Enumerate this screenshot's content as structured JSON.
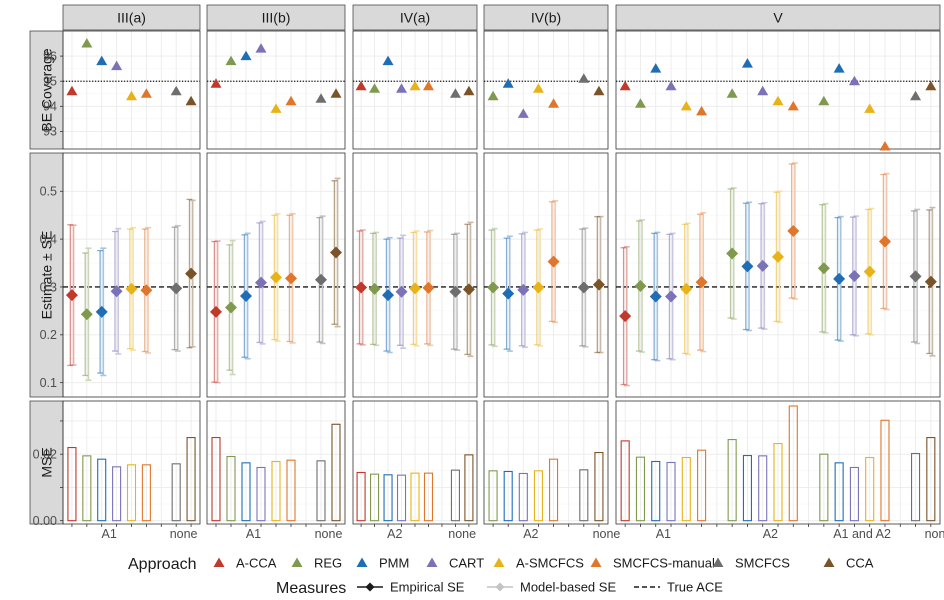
{
  "chart_data": {
    "type": "faceted-dot-errorbar-bar",
    "panels": [
      "III(a)",
      "III(b)",
      "IV(a)",
      "IV(b)",
      "V"
    ],
    "rows": [
      {
        "key": "coverage",
        "label": "BE Coverage",
        "ylim": [
          92.3,
          97.0
        ],
        "ticks": [
          93,
          94,
          95,
          96
        ],
        "tick_labels": [
          "93",
          "94",
          "95",
          "96"
        ],
        "reference_line": 95,
        "reference_style": "dotted"
      },
      {
        "key": "estimate",
        "label": "Estimate ± SE",
        "ylim": [
          0.07,
          0.58
        ],
        "ticks": [
          0.1,
          0.2,
          0.3,
          0.4,
          0.5
        ],
        "tick_labels": [
          "0.1",
          "0.2",
          "0.3",
          "0.4",
          "0.5"
        ],
        "reference_line": 0.3,
        "reference_style": "dashed"
      },
      {
        "key": "mse",
        "label": "MSE",
        "ylim": [
          -0.001,
          0.036
        ],
        "ticks": [
          0.0,
          0.01,
          0.02,
          0.03
        ],
        "tick_labels": [
          "0.00",
          "",
          "0.02",
          ""
        ]
      }
    ],
    "approaches": [
      {
        "name": "A-CCA",
        "color": "#c0392b"
      },
      {
        "name": "REG",
        "color": "#7f9a4f"
      },
      {
        "name": "PMM",
        "color": "#1f6db5"
      },
      {
        "name": "CART",
        "color": "#7b72b8"
      },
      {
        "name": "A-SMCFCS",
        "color": "#e8b319"
      },
      {
        "name": "SMCFCS-manual",
        "color": "#e0762b"
      },
      {
        "name": "SMCFCS",
        "color": "#6e6e6e"
      },
      {
        "name": "CCA",
        "color": "#7a5428"
      }
    ],
    "facets": [
      {
        "name": "III(a)",
        "x_labels": [
          {
            "label": "A1",
            "pos": 3.5
          },
          {
            "label": "none",
            "pos": 8.5
          }
        ],
        "points": [
          {
            "approach": "A-CCA",
            "x": 1,
            "coverage": 94.6,
            "estimate": 0.283,
            "emp_se": 0.147,
            "mod_se": 0.146,
            "mse": 0.022
          },
          {
            "approach": "REG",
            "x": 2,
            "coverage": 96.5,
            "estimate": 0.243,
            "emp_se": 0.128,
            "mod_se": 0.138,
            "mse": 0.0195
          },
          {
            "approach": "PMM",
            "x": 3,
            "coverage": 95.8,
            "estimate": 0.248,
            "emp_se": 0.128,
            "mod_se": 0.133,
            "mse": 0.0185
          },
          {
            "approach": "CART",
            "x": 4,
            "coverage": 95.6,
            "estimate": 0.291,
            "emp_se": 0.125,
            "mod_se": 0.131,
            "mse": 0.0162
          },
          {
            "approach": "A-SMCFCS",
            "x": 5,
            "coverage": 94.4,
            "estimate": 0.296,
            "emp_se": 0.125,
            "mod_se": 0.128,
            "mse": 0.0168
          },
          {
            "approach": "SMCFCS-manual",
            "x": 6,
            "coverage": 94.5,
            "estimate": 0.293,
            "emp_se": 0.128,
            "mod_se": 0.131,
            "mse": 0.0168
          },
          {
            "approach": "SMCFCS",
            "x": 8,
            "coverage": 94.6,
            "estimate": 0.297,
            "emp_se": 0.128,
            "mod_se": 0.131,
            "mse": 0.0171
          },
          {
            "approach": "CCA",
            "x": 9,
            "coverage": 94.2,
            "estimate": 0.328,
            "emp_se": 0.155,
            "mod_se": 0.153,
            "mse": 0.025
          }
        ]
      },
      {
        "name": "III(b)",
        "x_labels": [
          {
            "label": "A1",
            "pos": 3.5
          },
          {
            "label": "none",
            "pos": 8.5
          }
        ],
        "points": [
          {
            "approach": "A-CCA",
            "x": 1,
            "coverage": 94.9,
            "estimate": 0.248,
            "emp_se": 0.147,
            "mod_se": 0.148,
            "mse": 0.025
          },
          {
            "approach": "REG",
            "x": 2,
            "coverage": 95.8,
            "estimate": 0.257,
            "emp_se": 0.131,
            "mod_se": 0.14,
            "mse": 0.0193
          },
          {
            "approach": "PMM",
            "x": 3,
            "coverage": 96.0,
            "estimate": 0.281,
            "emp_se": 0.128,
            "mod_se": 0.131,
            "mse": 0.0174
          },
          {
            "approach": "CART",
            "x": 4,
            "coverage": 96.3,
            "estimate": 0.309,
            "emp_se": 0.125,
            "mod_se": 0.128,
            "mse": 0.016
          },
          {
            "approach": "A-SMCFCS",
            "x": 5,
            "coverage": 93.9,
            "estimate": 0.32,
            "emp_se": 0.13,
            "mod_se": 0.133,
            "mse": 0.0178
          },
          {
            "approach": "SMCFCS-manual",
            "x": 6,
            "coverage": 94.2,
            "estimate": 0.318,
            "emp_se": 0.132,
            "mod_se": 0.135,
            "mse": 0.0182
          },
          {
            "approach": "SMCFCS",
            "x": 8,
            "coverage": 94.3,
            "estimate": 0.315,
            "emp_se": 0.13,
            "mod_se": 0.133,
            "mse": 0.018
          },
          {
            "approach": "CCA",
            "x": 9,
            "coverage": 94.5,
            "estimate": 0.372,
            "emp_se": 0.15,
            "mod_se": 0.155,
            "mse": 0.029
          }
        ]
      },
      {
        "name": "IV(a)",
        "x_labels": [
          {
            "label": "A2",
            "pos": 3.5
          },
          {
            "label": "none",
            "pos": 8.5
          }
        ],
        "points": [
          {
            "approach": "A-CCA",
            "x": 1,
            "coverage": 94.8,
            "estimate": 0.299,
            "emp_se": 0.118,
            "mod_se": 0.12,
            "mse": 0.0145
          },
          {
            "approach": "REG",
            "x": 2,
            "coverage": 94.7,
            "estimate": 0.296,
            "emp_se": 0.116,
            "mod_se": 0.118,
            "mse": 0.014
          },
          {
            "approach": "PMM",
            "x": 3,
            "coverage": 95.8,
            "estimate": 0.283,
            "emp_se": 0.117,
            "mod_se": 0.12,
            "mse": 0.0138
          },
          {
            "approach": "CART",
            "x": 4,
            "coverage": 94.7,
            "estimate": 0.29,
            "emp_se": 0.112,
            "mod_se": 0.118,
            "mse": 0.0137
          },
          {
            "approach": "A-SMCFCS",
            "x": 5,
            "coverage": 94.8,
            "estimate": 0.297,
            "emp_se": 0.117,
            "mod_se": 0.12,
            "mse": 0.0143
          },
          {
            "approach": "SMCFCS-manual",
            "x": 6,
            "coverage": 94.8,
            "estimate": 0.298,
            "emp_se": 0.117,
            "mod_se": 0.12,
            "mse": 0.0143
          },
          {
            "approach": "SMCFCS",
            "x": 8,
            "coverage": 94.5,
            "estimate": 0.29,
            "emp_se": 0.12,
            "mod_se": 0.122,
            "mse": 0.0152
          },
          {
            "approach": "CCA",
            "x": 9,
            "coverage": 94.6,
            "estimate": 0.295,
            "emp_se": 0.136,
            "mod_se": 0.14,
            "mse": 0.0198
          }
        ]
      },
      {
        "name": "IV(b)",
        "x_labels": [
          {
            "label": "A2",
            "pos": 3.5
          },
          {
            "label": "none",
            "pos": 8.5
          }
        ],
        "points": [
          {
            "approach": "REG",
            "x": 1,
            "coverage": 94.4,
            "estimate": 0.299,
            "emp_se": 0.12,
            "mod_se": 0.123,
            "mse": 0.015
          },
          {
            "approach": "PMM",
            "x": 2,
            "coverage": 94.9,
            "estimate": 0.286,
            "emp_se": 0.116,
            "mod_se": 0.12,
            "mse": 0.0148
          },
          {
            "approach": "CART",
            "x": 3,
            "coverage": 93.7,
            "estimate": 0.294,
            "emp_se": 0.117,
            "mod_se": 0.12,
            "mse": 0.0142
          },
          {
            "approach": "A-SMCFCS",
            "x": 4,
            "coverage": 94.7,
            "estimate": 0.299,
            "emp_se": 0.12,
            "mod_se": 0.122,
            "mse": 0.015
          },
          {
            "approach": "SMCFCS-manual",
            "x": 5,
            "coverage": 94.1,
            "estimate": 0.353,
            "emp_se": 0.125,
            "mod_se": 0.127,
            "mse": 0.0185
          },
          {
            "approach": "SMCFCS",
            "x": 7,
            "coverage": 95.1,
            "estimate": 0.299,
            "emp_se": 0.122,
            "mod_se": 0.124,
            "mse": 0.0153
          },
          {
            "approach": "CCA",
            "x": 8,
            "coverage": 94.6,
            "estimate": 0.305,
            "emp_se": 0.142,
            "mod_se": 0.142,
            "mse": 0.0205
          }
        ]
      },
      {
        "name": "V",
        "x_labels": [
          {
            "label": "A1",
            "pos": 3.5
          },
          {
            "label": "A2",
            "pos": 10.5
          },
          {
            "label": "A1 and A2",
            "pos": 16.5
          },
          {
            "label": "none",
            "pos": 21.5
          }
        ],
        "points": [
          {
            "approach": "A-CCA",
            "x": 1,
            "coverage": 94.8,
            "estimate": 0.239,
            "emp_se": 0.143,
            "mod_se": 0.145,
            "mse": 0.024
          },
          {
            "approach": "REG",
            "x": 2,
            "coverage": 94.1,
            "estimate": 0.302,
            "emp_se": 0.136,
            "mod_se": 0.138,
            "mse": 0.0191
          },
          {
            "approach": "PMM",
            "x": 3,
            "coverage": 95.5,
            "estimate": 0.28,
            "emp_se": 0.132,
            "mod_se": 0.134,
            "mse": 0.0178
          },
          {
            "approach": "CART",
            "x": 4,
            "coverage": 94.8,
            "estimate": 0.28,
            "emp_se": 0.13,
            "mod_se": 0.132,
            "mse": 0.0175
          },
          {
            "approach": "A-SMCFCS",
            "x": 5,
            "coverage": 94.0,
            "estimate": 0.296,
            "emp_se": 0.135,
            "mod_se": 0.137,
            "mse": 0.019
          },
          {
            "approach": "SMCFCS-manual",
            "x": 6,
            "coverage": 93.8,
            "estimate": 0.31,
            "emp_se": 0.142,
            "mod_se": 0.145,
            "mse": 0.0212
          },
          {
            "approach": "REG",
            "x": 8,
            "coverage": 94.5,
            "estimate": 0.37,
            "emp_se": 0.135,
            "mod_se": 0.137,
            "mse": 0.0244
          },
          {
            "approach": "PMM",
            "x": 9,
            "coverage": 95.7,
            "estimate": 0.343,
            "emp_se": 0.132,
            "mod_se": 0.134,
            "mse": 0.0196
          },
          {
            "approach": "CART",
            "x": 10,
            "coverage": 94.6,
            "estimate": 0.344,
            "emp_se": 0.13,
            "mod_se": 0.132,
            "mse": 0.0195
          },
          {
            "approach": "A-SMCFCS",
            "x": 11,
            "coverage": 94.2,
            "estimate": 0.363,
            "emp_se": 0.135,
            "mod_se": 0.137,
            "mse": 0.0232
          },
          {
            "approach": "SMCFCS-manual",
            "x": 12,
            "coverage": 94.0,
            "estimate": 0.417,
            "emp_se": 0.14,
            "mod_se": 0.142,
            "mse": 0.0345
          },
          {
            "approach": "REG",
            "x": 14,
            "coverage": 94.2,
            "estimate": 0.339,
            "emp_se": 0.133,
            "mod_se": 0.135,
            "mse": 0.02
          },
          {
            "approach": "PMM",
            "x": 15,
            "coverage": 95.5,
            "estimate": 0.317,
            "emp_se": 0.128,
            "mod_se": 0.13,
            "mse": 0.0174
          },
          {
            "approach": "CART",
            "x": 16,
            "coverage": 95.0,
            "estimate": 0.323,
            "emp_se": 0.123,
            "mod_se": 0.125,
            "mse": 0.016
          },
          {
            "approach": "A-SMCFCS",
            "x": 17,
            "coverage": 93.9,
            "estimate": 0.332,
            "emp_se": 0.13,
            "mod_se": 0.132,
            "mse": 0.019
          },
          {
            "approach": "SMCFCS-manual",
            "x": 18,
            "coverage": 92.4,
            "estimate": 0.395,
            "emp_se": 0.14,
            "mod_se": 0.142,
            "mse": 0.0302
          },
          {
            "approach": "SMCFCS",
            "x": 20,
            "coverage": 94.4,
            "estimate": 0.322,
            "emp_se": 0.137,
            "mod_se": 0.14,
            "mse": 0.0202
          },
          {
            "approach": "CCA",
            "x": 21,
            "coverage": 94.8,
            "estimate": 0.311,
            "emp_se": 0.15,
            "mod_se": 0.155,
            "mse": 0.025
          }
        ]
      }
    ],
    "legend_approach_title": "Approach",
    "legend_measures_title": "Measures",
    "measures": [
      {
        "name": "Empirical SE",
        "style": "solid-dark-diamond"
      },
      {
        "name": "Model-based SE",
        "style": "solid-light-diamond"
      },
      {
        "name": "True ACE",
        "style": "dashed"
      }
    ],
    "grid": true,
    "legend_position": "bottom"
  }
}
